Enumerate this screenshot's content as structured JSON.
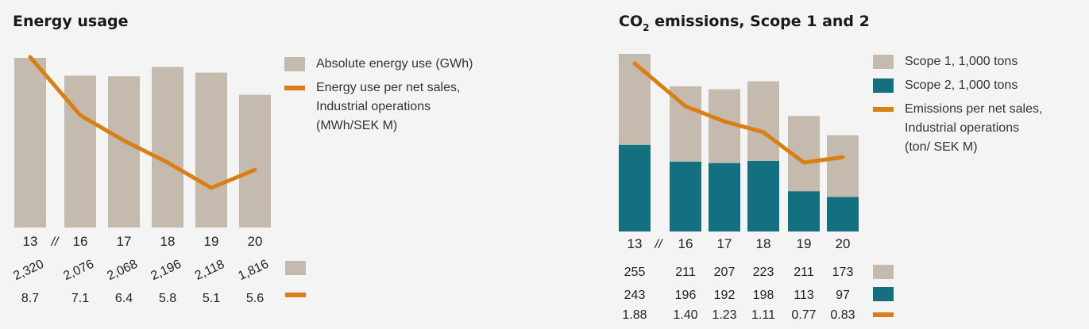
{
  "colors": {
    "beige": "#c4bbae",
    "teal": "#137080",
    "orange": "#d97f16",
    "background": "#f4f4f4"
  },
  "left": {
    "title": "Energy usage",
    "legend": {
      "bar": "Absolute energy use (GWh)",
      "line": "Energy use per net sales,\nIndustrial operations\n(MWh/SEK M)"
    },
    "break_mark": "//"
  },
  "right": {
    "title_prefix": "CO",
    "title_sub": "2",
    "title_suffix": " emissions, Scope 1 and 2",
    "legend": {
      "scope1": "Scope 1, 1,000 tons",
      "scope2": "Scope 2, 1,000 tons",
      "line": "Emissions per net sales,\nIndustrial operations\n(ton/ SEK M)"
    },
    "break_mark": "//"
  },
  "chart_data": [
    {
      "type": "bar",
      "title": "Energy usage",
      "categories": [
        "13",
        "16",
        "17",
        "18",
        "19",
        "20"
      ],
      "series": [
        {
          "name": "Absolute energy use (GWh)",
          "type": "bar",
          "values": [
            2320,
            2076,
            2068,
            2196,
            2118,
            1816
          ],
          "labels": [
            "2,320",
            "2,076",
            "2,068",
            "2,196",
            "2,118",
            "1,816"
          ]
        },
        {
          "name": "Energy use per net sales, Industrial operations (MWh/SEK M)",
          "type": "line",
          "values": [
            8.7,
            7.1,
            6.4,
            5.8,
            5.1,
            5.6
          ],
          "labels": [
            "8.7",
            "7.1",
            "6.4",
            "5.8",
            "5.1",
            "5.6"
          ]
        }
      ]
    },
    {
      "type": "bar",
      "title": "CO2 emissions, Scope 1 and 2",
      "categories": [
        "13",
        "16",
        "17",
        "18",
        "19",
        "20"
      ],
      "series": [
        {
          "name": "Scope 1, 1,000 tons",
          "type": "bar",
          "stacked": true,
          "values": [
            255,
            211,
            207,
            223,
            211,
            173
          ],
          "labels": [
            "255",
            "211",
            "207",
            "223",
            "211",
            "173"
          ]
        },
        {
          "name": "Scope 2, 1,000 tons",
          "type": "bar",
          "stacked": true,
          "values": [
            243,
            196,
            192,
            198,
            113,
            97
          ],
          "labels": [
            "243",
            "196",
            "192",
            "198",
            "113",
            "97"
          ]
        },
        {
          "name": "Emissions per net sales, Industrial operations (ton/ SEK M)",
          "type": "line",
          "values": [
            1.88,
            1.4,
            1.23,
            1.11,
            0.77,
            0.83
          ],
          "labels": [
            "1.88",
            "1.40",
            "1.23",
            "1.11",
            "0.77",
            "0.83"
          ]
        }
      ]
    }
  ]
}
